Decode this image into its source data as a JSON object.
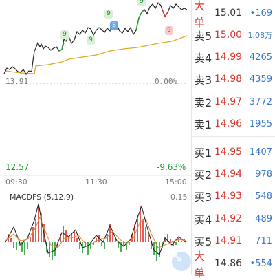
{
  "price_chart": {
    "high_pct": "",
    "base_price": "13.91",
    "base_pct": "0.00%",
    "low_price": "12.57",
    "low_pct": "-9.63%",
    "times": [
      "09:30",
      "11:30",
      "15:00"
    ],
    "badges": [
      "9",
      "9",
      "9",
      "S",
      "9",
      "9"
    ]
  },
  "macd": {
    "title": "MACDFS",
    "params": "(5,12,9)",
    "top_value": "0.15"
  },
  "order_book": {
    "top_big": {
      "label": "大单",
      "price": "15.01",
      "volume": "•169"
    },
    "asks": [
      {
        "label": "卖5",
        "price": "15.00",
        "volume": "1.08万"
      },
      {
        "label": "卖4",
        "price": "14.99",
        "volume": "4265"
      },
      {
        "label": "卖3",
        "price": "14.98",
        "volume": "4359"
      },
      {
        "label": "卖2",
        "price": "14.97",
        "volume": "3772"
      },
      {
        "label": "卖1",
        "price": "14.96",
        "volume": "1955"
      }
    ],
    "bids": [
      {
        "label": "买1",
        "price": "14.95",
        "volume": "1407"
      },
      {
        "label": "买2",
        "price": "14.94",
        "volume": "978"
      },
      {
        "label": "买3",
        "price": "14.93",
        "volume": "548"
      },
      {
        "label": "买4",
        "price": "14.92",
        "volume": "489"
      },
      {
        "label": "买5",
        "price": "14.91",
        "volume": "711"
      }
    ],
    "bottom_big": {
      "label": "大单",
      "price": "14.86",
      "volume": "•554"
    }
  },
  "colors": {
    "up": "#d9342b",
    "down": "#1f9a2f",
    "price_line": "#222222",
    "avg_line": "#e0a820",
    "volume": "#3b78c4"
  },
  "icons": {
    "expand": "expand-arrows-icon"
  }
}
